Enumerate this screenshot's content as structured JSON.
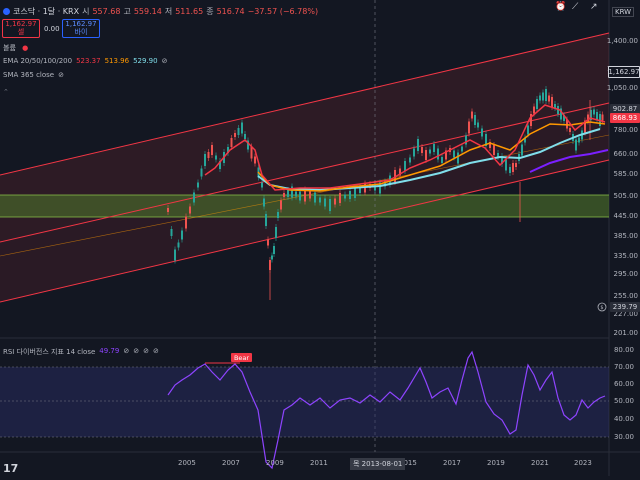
{
  "header": {
    "symbol": "코스닥 · 1달 · KRX",
    "open_label": "시",
    "open": "557.68",
    "high_label": "고",
    "high": "559.14",
    "low_label": "저",
    "low": "511.65",
    "close_label": "종",
    "close": "516.74",
    "change": "−37.57 (−6.78%)",
    "sell_price": "1,162.97",
    "sell_label": "셀",
    "spread": "0.00",
    "buy_price": "1,162.97",
    "buy_label": "바이",
    "currency": "KRW"
  },
  "indicators": {
    "volume_label": "볼륨",
    "ema_label": "EMA 20/50/100/200",
    "ema_values": [
      "523.37",
      "513.96",
      "529.90"
    ],
    "sma_label": "SMA 365 close",
    "rsi_label": "RSI 다이버전스 지표 14 close",
    "rsi_value": "49.79",
    "bear_label": "Bear"
  },
  "price_axis": {
    "ticks": [
      "1,400.00",
      "1,200.00",
      "1,050.00",
      "900.00",
      "780.00",
      "660.00",
      "585.00",
      "505.00",
      "445.00",
      "385.00",
      "335.00",
      "295.00",
      "255.00",
      "227.00",
      "201.00"
    ],
    "current_price": "1,162.97",
    "last_a": "902.87",
    "last_b": "868.93",
    "low_marker": "239.79"
  },
  "rsi_axis": {
    "ticks": [
      "80.00",
      "70.00",
      "60.00",
      "50.00",
      "40.00",
      "30.00"
    ]
  },
  "time_axis": {
    "ticks": [
      "2005",
      "2007",
      "2009",
      "2011",
      "2015",
      "2017",
      "2019",
      "2021",
      "2023"
    ],
    "crosshair_date": "목 2013-08-01"
  },
  "colors": {
    "background": "#131722",
    "channel": "#f23645",
    "zone_fill": "#3f5a2a",
    "ema20": "#f23645",
    "ema50": "#ff9800",
    "ema100": "#80deea",
    "sma365": "#7b1fff",
    "rsi": "#8e44ff",
    "up": "#26a69a",
    "down": "#ef5350"
  },
  "watermark": "TV"
}
